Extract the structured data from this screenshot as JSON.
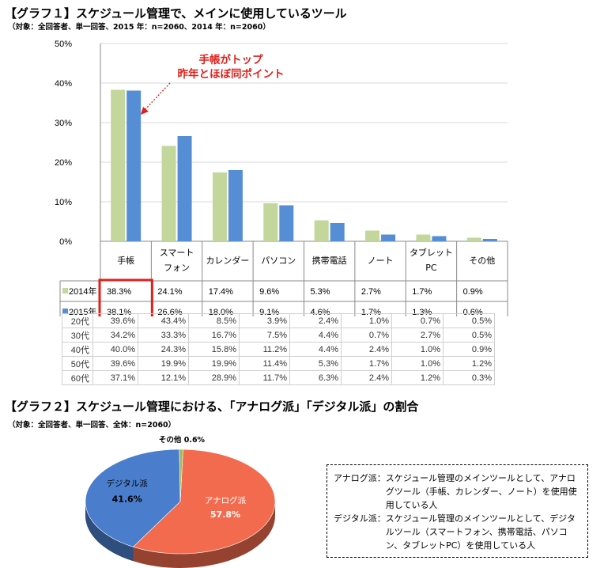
{
  "graph1": {
    "title": "【グラフ１】スケジュール管理で、メインに使用しているツール",
    "subtitle": "（対象：全回答者、単一回答、2015 年：n=2060、2014 年：n=2060）",
    "annotation_line1": "手帳がトップ",
    "annotation_line2": "昨年とほぼ同ポイント"
  },
  "chart_data": [
    {
      "type": "bar",
      "categories": [
        "手帳",
        "スマートフォン",
        "カレンダー",
        "パソコン",
        "携帯電話",
        "ノート",
        "タブレットPC",
        "その他"
      ],
      "category_lines": [
        [
          "手帳"
        ],
        [
          "スマート",
          "フォン"
        ],
        [
          "カレンダー"
        ],
        [
          "パソコン"
        ],
        [
          "携帯電話"
        ],
        [
          "ノート"
        ],
        [
          "タブレット",
          "PC"
        ],
        [
          "その他"
        ]
      ],
      "series": [
        {
          "name": "2014年",
          "values": [
            38.3,
            24.1,
            17.4,
            9.6,
            5.3,
            2.7,
            1.7,
            0.9
          ],
          "labels": [
            "38.3%",
            "24.1%",
            "17.4%",
            "9.6%",
            "5.3%",
            "2.7%",
            "1.7%",
            "0.9%"
          ],
          "color": "#c3d69b"
        },
        {
          "name": "2015年",
          "values": [
            38.1,
            26.6,
            18.0,
            9.1,
            4.6,
            1.7,
            1.3,
            0.6
          ],
          "labels": [
            "38.1%",
            "26.6%",
            "18.0%",
            "9.1%",
            "4.6%",
            "1.7%",
            "1.3%",
            "0.6%"
          ],
          "color": "#558ed5"
        }
      ],
      "y_ticks": [
        "0%",
        "10%",
        "20%",
        "30%",
        "40%",
        "50%"
      ],
      "ylim": [
        0,
        50
      ],
      "highlight_color": "#e0201b"
    },
    {
      "type": "pie",
      "labels": [
        "アナログ派",
        "デジタル派",
        "その他"
      ],
      "values": [
        57.8,
        41.6,
        0.6
      ],
      "value_labels": [
        "57.8%",
        "41.6%",
        "0.6%"
      ],
      "colors": [
        "#f26b4e",
        "#4a7dcb",
        "#9bbb59"
      ]
    }
  ],
  "gen_table": {
    "rows": [
      {
        "age": "20代",
        "cells": [
          "39.6%",
          "43.4%",
          "8.5%",
          "3.9%",
          "2.4%",
          "1.0%",
          "0.7%",
          "0.5%"
        ]
      },
      {
        "age": "30代",
        "cells": [
          "34.2%",
          "33.3%",
          "16.7%",
          "7.5%",
          "4.4%",
          "0.7%",
          "2.7%",
          "0.5%"
        ]
      },
      {
        "age": "40代",
        "cells": [
          "40.0%",
          "24.3%",
          "15.8%",
          "11.2%",
          "4.4%",
          "2.4%",
          "1.0%",
          "0.9%"
        ]
      },
      {
        "age": "50代",
        "cells": [
          "39.6%",
          "19.9%",
          "19.9%",
          "11.4%",
          "5.3%",
          "1.7%",
          "1.0%",
          "1.2%"
        ]
      },
      {
        "age": "60代",
        "cells": [
          "37.1%",
          "12.1%",
          "28.9%",
          "11.7%",
          "6.3%",
          "2.4%",
          "1.2%",
          "0.3%"
        ]
      }
    ]
  },
  "graph2": {
    "title": "【グラフ２】スケジュール管理における、「アナログ派」「デジタル派」の割合",
    "subtitle": "（対象：全回答者、単一回答、全体：n=2060）"
  },
  "notes": [
    {
      "term": "アナログ派：",
      "desc": "スケジュール管理のメインツールとして、アナログツール（手帳、カレンダー、ノート）を使用使用している人"
    },
    {
      "term": "デジタル派：",
      "desc": "スケジュール管理のメインツールとして、デジタルツール（スマートフォン、携帯電話、パソコン、タブレットPC）を使用している人"
    }
  ]
}
